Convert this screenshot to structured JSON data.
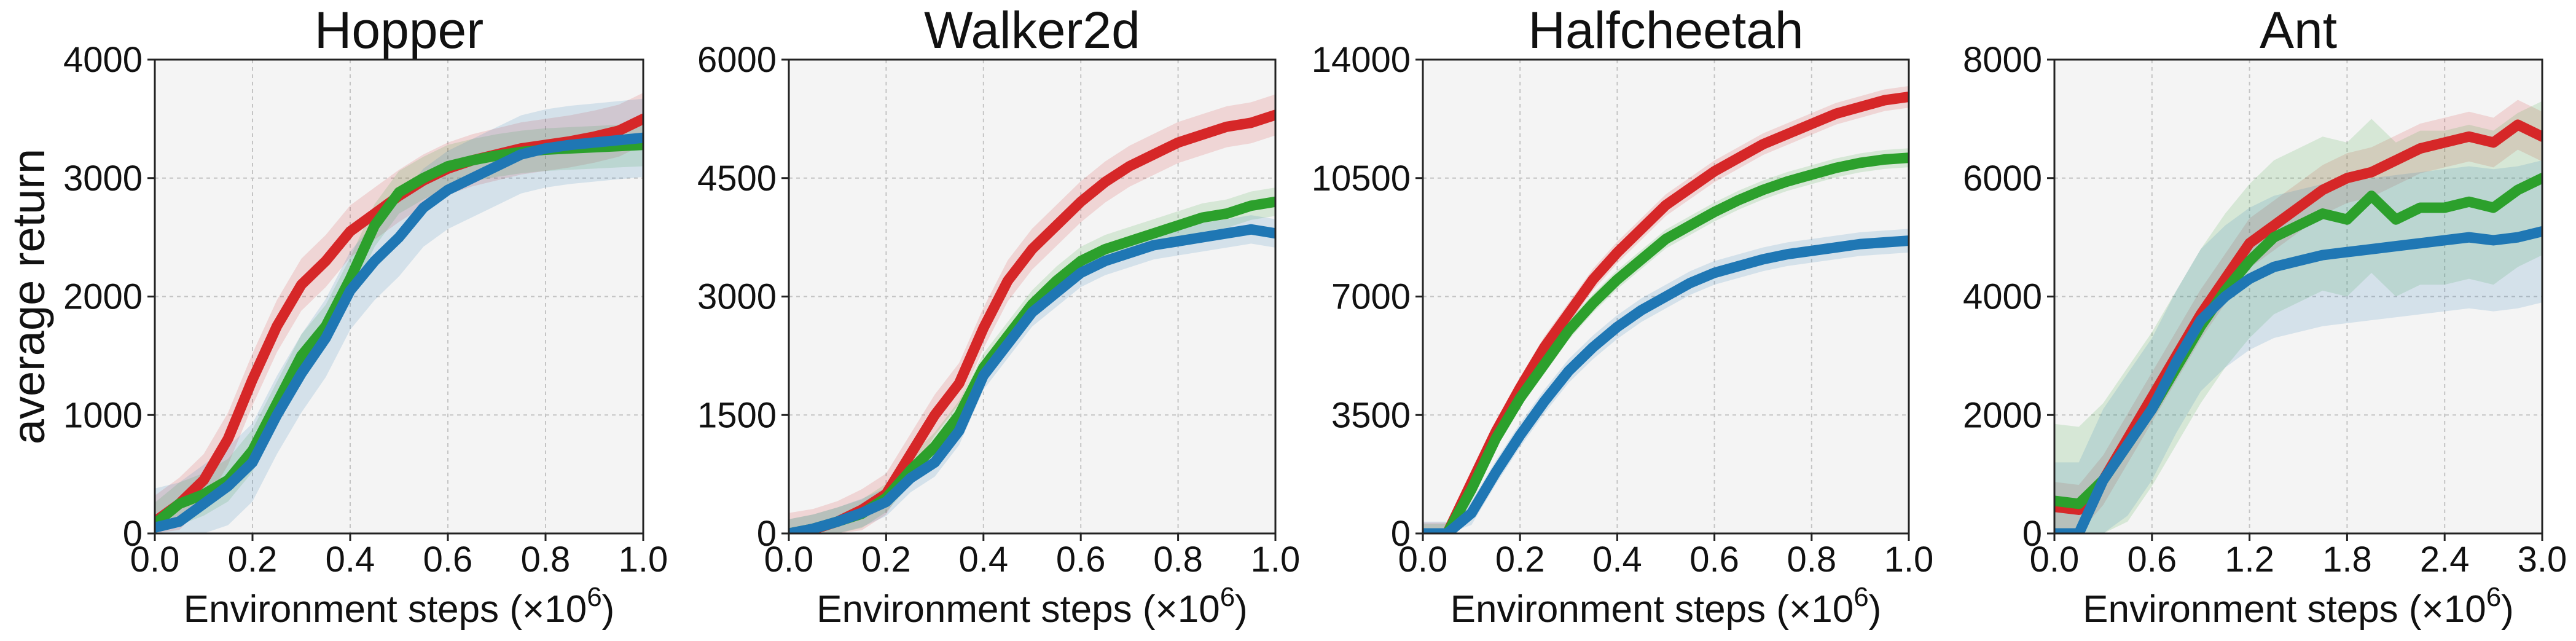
{
  "colors": {
    "red": "#d62728",
    "green": "#2ca02c",
    "blue": "#1f77b4",
    "background": "#f4f4f4"
  },
  "chart_data": [
    {
      "type": "line",
      "title": "Hopper",
      "xlabel": "Environment steps (×10",
      "xlabel_sup": "6",
      "xlabel_suffix": ")",
      "ylabel": "average return",
      "xlim": [
        0.0,
        1.0
      ],
      "ylim": [
        0,
        4000
      ],
      "xticks": [
        0.0,
        0.2,
        0.4,
        0.6,
        0.8,
        1.0
      ],
      "xtick_labels": [
        "0.0",
        "0.2",
        "0.4",
        "0.6",
        "0.8",
        "1.0"
      ],
      "yticks": [
        0,
        1000,
        2000,
        3000,
        4000
      ],
      "ytick_labels": [
        "0",
        "1000",
        "2000",
        "3000",
        "4000"
      ],
      "grid": true,
      "x": [
        0.0,
        0.05,
        0.1,
        0.15,
        0.2,
        0.25,
        0.3,
        0.35,
        0.4,
        0.45,
        0.5,
        0.55,
        0.6,
        0.65,
        0.7,
        0.75,
        0.8,
        0.85,
        0.9,
        0.95,
        1.0
      ],
      "series": [
        {
          "color": "red",
          "values": [
            100,
            250,
            450,
            800,
            1300,
            1750,
            2100,
            2300,
            2550,
            2700,
            2850,
            2980,
            3080,
            3150,
            3200,
            3250,
            3280,
            3310,
            3350,
            3400,
            3500
          ],
          "band": 220
        },
        {
          "color": "green",
          "values": [
            80,
            250,
            330,
            450,
            700,
            1100,
            1500,
            1750,
            2150,
            2600,
            2880,
            3000,
            3100,
            3150,
            3190,
            3220,
            3240,
            3250,
            3260,
            3270,
            3280
          ],
          "band": 180
        },
        {
          "color": "blue",
          "values": [
            50,
            100,
            250,
            400,
            600,
            1000,
            1350,
            1650,
            2050,
            2300,
            2500,
            2750,
            2900,
            3000,
            3100,
            3200,
            3250,
            3280,
            3300,
            3320,
            3340
          ],
          "band": 330
        }
      ]
    },
    {
      "type": "line",
      "title": "Walker2d",
      "xlabel": "Environment steps (×10",
      "xlabel_sup": "6",
      "xlabel_suffix": ")",
      "ylabel": "",
      "xlim": [
        0.0,
        1.0
      ],
      "ylim": [
        0,
        6000
      ],
      "xticks": [
        0.0,
        0.2,
        0.4,
        0.6,
        0.8,
        1.0
      ],
      "xtick_labels": [
        "0.0",
        "0.2",
        "0.4",
        "0.6",
        "0.8",
        "1.0"
      ],
      "yticks": [
        0,
        1500,
        3000,
        4500,
        6000
      ],
      "ytick_labels": [
        "0",
        "1500",
        "3000",
        "4500",
        "6000"
      ],
      "grid": true,
      "x": [
        0.0,
        0.05,
        0.1,
        0.15,
        0.2,
        0.25,
        0.3,
        0.35,
        0.4,
        0.45,
        0.5,
        0.55,
        0.6,
        0.65,
        0.7,
        0.75,
        0.8,
        0.85,
        0.9,
        0.95,
        1.0
      ],
      "series": [
        {
          "color": "red",
          "values": [
            0,
            50,
            150,
            300,
            500,
            1000,
            1500,
            1900,
            2600,
            3200,
            3600,
            3900,
            4200,
            4450,
            4650,
            4800,
            4950,
            5050,
            5150,
            5200,
            5300
          ],
          "band": 260
        },
        {
          "color": "green",
          "values": [
            0,
            60,
            150,
            250,
            450,
            800,
            1100,
            1500,
            2100,
            2500,
            2900,
            3200,
            3450,
            3600,
            3700,
            3800,
            3900,
            4000,
            4050,
            4150,
            4200
          ],
          "band": 180
        },
        {
          "color": "blue",
          "values": [
            0,
            60,
            150,
            260,
            400,
            700,
            900,
            1300,
            2000,
            2400,
            2800,
            3050,
            3300,
            3450,
            3550,
            3650,
            3700,
            3750,
            3800,
            3850,
            3800
          ],
          "band": 180
        }
      ]
    },
    {
      "type": "line",
      "title": "Halfcheetah",
      "xlabel": "Environment steps (×10",
      "xlabel_sup": "6",
      "xlabel_suffix": ")",
      "ylabel": "",
      "xlim": [
        0.0,
        1.0
      ],
      "ylim": [
        0,
        14000
      ],
      "xticks": [
        0.0,
        0.2,
        0.4,
        0.6,
        0.8,
        1.0
      ],
      "xtick_labels": [
        "0.0",
        "0.2",
        "0.4",
        "0.6",
        "0.8",
        "1.0"
      ],
      "yticks": [
        0,
        3500,
        7000,
        10500,
        14000
      ],
      "ytick_labels": [
        "0",
        "3500",
        "7000",
        "10500",
        "14000"
      ],
      "grid": true,
      "x": [
        0.0,
        0.05,
        0.1,
        0.15,
        0.2,
        0.25,
        0.3,
        0.35,
        0.4,
        0.45,
        0.5,
        0.55,
        0.6,
        0.65,
        0.7,
        0.75,
        0.8,
        0.85,
        0.9,
        0.95,
        1.0
      ],
      "series": [
        {
          "color": "red",
          "values": [
            0,
            0,
            1500,
            3000,
            4300,
            5500,
            6500,
            7500,
            8300,
            9000,
            9700,
            10200,
            10700,
            11100,
            11500,
            11800,
            12100,
            12400,
            12600,
            12800,
            12900
          ],
          "band": 320
        },
        {
          "color": "green",
          "values": [
            0,
            0,
            1300,
            2800,
            4000,
            5000,
            6000,
            6800,
            7500,
            8100,
            8700,
            9100,
            9500,
            9850,
            10150,
            10400,
            10600,
            10800,
            10950,
            11050,
            11100
          ],
          "band": 280
        },
        {
          "color": "blue",
          "values": [
            0,
            0,
            600,
            1800,
            2900,
            3900,
            4800,
            5500,
            6100,
            6600,
            7000,
            7400,
            7700,
            7900,
            8100,
            8250,
            8350,
            8450,
            8550,
            8600,
            8650
          ],
          "band": 350
        }
      ]
    },
    {
      "type": "line",
      "title": "Ant",
      "xlabel": "Environment steps (×10",
      "xlabel_sup": "6",
      "xlabel_suffix": ")",
      "ylabel": "",
      "xlim": [
        0.0,
        3.0
      ],
      "ylim": [
        0,
        8000
      ],
      "xticks": [
        0.0,
        0.6,
        1.2,
        1.8,
        2.4,
        3.0
      ],
      "xtick_labels": [
        "0.0",
        "0.6",
        "1.2",
        "1.8",
        "2.4",
        "3.0"
      ],
      "yticks": [
        0,
        2000,
        4000,
        6000,
        8000
      ],
      "ytick_labels": [
        "0",
        "2000",
        "4000",
        "6000",
        "8000"
      ],
      "grid": true,
      "x": [
        0.0,
        0.15,
        0.3,
        0.45,
        0.6,
        0.75,
        0.9,
        1.05,
        1.2,
        1.35,
        1.5,
        1.65,
        1.8,
        1.95,
        2.1,
        2.25,
        2.4,
        2.55,
        2.7,
        2.85,
        3.0
      ],
      "series": [
        {
          "color": "red",
          "values": [
            450,
            400,
            900,
            1600,
            2300,
            3000,
            3700,
            4300,
            4900,
            5200,
            5500,
            5800,
            6000,
            6100,
            6300,
            6500,
            6600,
            6700,
            6600,
            6900,
            6700
          ],
          "band": 420
        },
        {
          "color": "green",
          "values": [
            550,
            500,
            900,
            1500,
            2100,
            2800,
            3500,
            4100,
            4600,
            5000,
            5200,
            5400,
            5300,
            5700,
            5300,
            5500,
            5500,
            5600,
            5500,
            5800,
            6000
          ],
          "band": 1300
        },
        {
          "color": "blue",
          "values": [
            0,
            0,
            900,
            1500,
            2100,
            2900,
            3600,
            4000,
            4300,
            4500,
            4600,
            4700,
            4750,
            4800,
            4850,
            4900,
            4950,
            5000,
            4950,
            5000,
            5100
          ],
          "band": 1200
        }
      ]
    }
  ]
}
